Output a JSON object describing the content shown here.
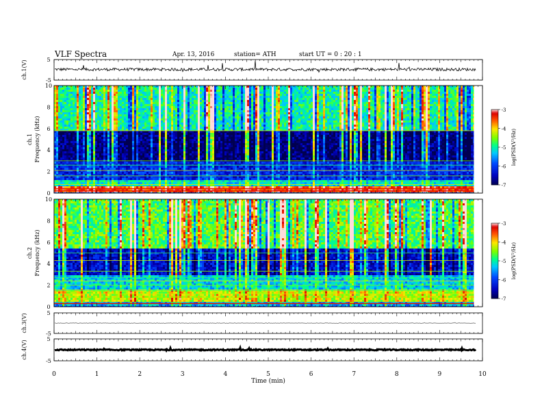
{
  "header": {
    "title": "VLF  Spectra",
    "date": "Apr. 13, 2016",
    "station": "station= ATH",
    "start": "start  UT =   0  : 20 : 1"
  },
  "chart_data": [
    {
      "type": "line",
      "name": "ch1-waveform",
      "ylabel": "ch.1(V)",
      "ylim": [
        -5,
        5
      ],
      "yticks": [
        "5",
        "-5"
      ],
      "xlim": [
        0,
        10
      ],
      "mean_level": 0.2,
      "trace_color": "#000000"
    },
    {
      "type": "heatmap",
      "name": "ch1-spectrogram",
      "ylabel_channel": "ch.1",
      "ylabel": "Frequency (kHz)",
      "ylim": [
        0,
        10
      ],
      "yticks": [
        "0",
        "2",
        "4",
        "6",
        "8",
        "10"
      ],
      "xlim": [
        0,
        10
      ],
      "data_end_min": 9.8,
      "colorbar": {
        "label": "log(PSD(V²/Hz)",
        "range": [
          -7,
          -3
        ],
        "ticks": [
          "-3",
          "-4",
          "-5",
          "-6",
          "-7"
        ]
      },
      "bands_khz": [
        {
          "from": 0,
          "to": 0.6,
          "level": -3.5
        },
        {
          "from": 0.6,
          "to": 1.3,
          "level": -5.2
        },
        {
          "from": 1.3,
          "to": 3.0,
          "level": -6.2
        },
        {
          "from": 3.0,
          "to": 5.8,
          "level": -6.8
        },
        {
          "from": 5.8,
          "to": 10,
          "level": -5.0
        }
      ],
      "lines_khz": [
        0.2,
        0.4,
        0.8,
        1.1,
        1.6,
        2.1,
        2.6,
        3.0,
        5.8
      ]
    },
    {
      "type": "heatmap",
      "name": "ch2-spectrogram",
      "ylabel_channel": "ch.2",
      "ylabel": "Frequency (kHz)",
      "ylim": [
        0,
        10
      ],
      "yticks": [
        "0",
        "2",
        "4",
        "6",
        "8",
        "10"
      ],
      "xlim": [
        0,
        10
      ],
      "data_end_min": 9.8,
      "colorbar": {
        "label": "log(PSD(V²/Hz)",
        "range": [
          -7,
          -3
        ],
        "ticks": [
          "-3",
          "-4",
          "-5",
          "-6",
          "-7"
        ]
      },
      "bands_khz": [
        {
          "from": 0,
          "to": 0.5,
          "level": -5.5
        },
        {
          "from": 0.5,
          "to": 1.5,
          "level": -4.3
        },
        {
          "from": 1.5,
          "to": 3.0,
          "level": -5.3
        },
        {
          "from": 3.0,
          "to": 5.5,
          "level": -6.4
        },
        {
          "from": 5.5,
          "to": 10,
          "level": -4.7
        }
      ],
      "lines_khz": [
        0.3,
        0.9,
        1.2,
        1.5,
        2.0,
        2.4,
        2.7,
        3.3,
        4.3,
        5.0
      ]
    },
    {
      "type": "line",
      "name": "ch3-waveform",
      "ylabel": "ch.3(V)",
      "ylim": [
        -5,
        5
      ],
      "yticks": [
        "5",
        "-5"
      ],
      "xlim": [
        0,
        10
      ],
      "mean_level": 0,
      "trace_color": "#000000"
    },
    {
      "type": "line",
      "name": "ch4-waveform",
      "ylabel": "ch.4(V)",
      "ylim": [
        -5,
        5
      ],
      "yticks": [
        "5",
        "-5"
      ],
      "xlim": [
        0,
        10
      ],
      "mean_level": 0,
      "trace_color": "#000000"
    }
  ],
  "xaxis": {
    "label": "Time  (min)",
    "ticks": [
      "0",
      "1",
      "2",
      "3",
      "4",
      "5",
      "6",
      "7",
      "8",
      "9",
      "10"
    ]
  }
}
